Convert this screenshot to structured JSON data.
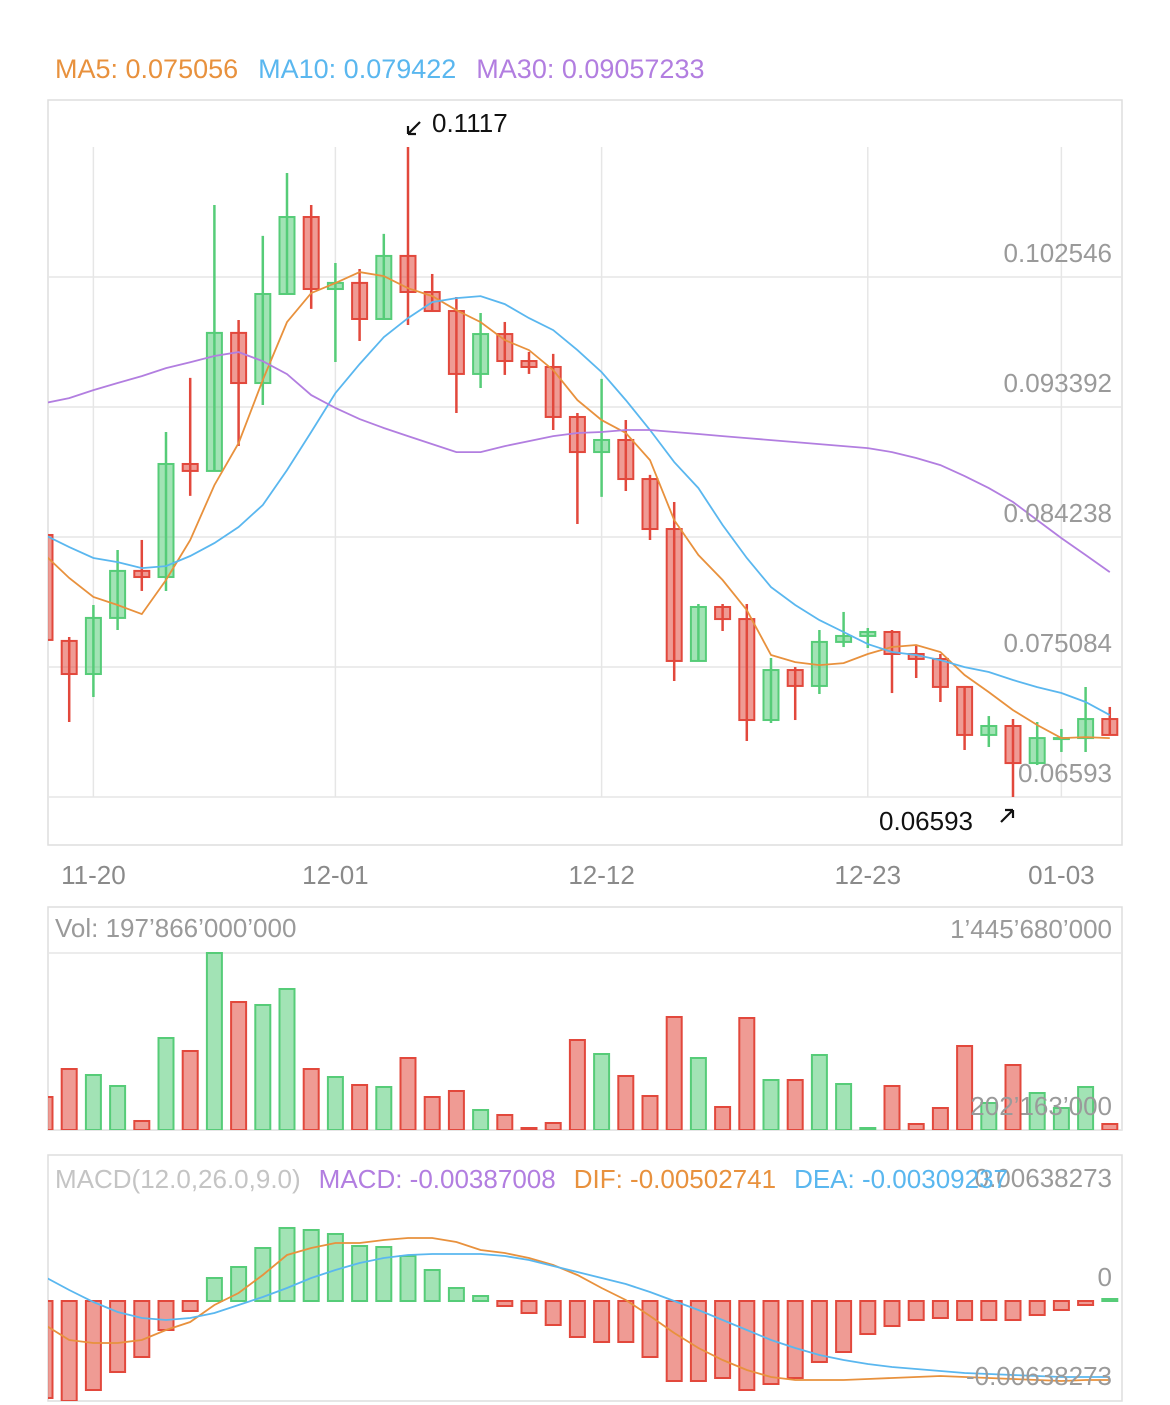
{
  "chart_data": [
    {
      "type": "candlestick",
      "series": [
        {
          "name": "MA5: 0.075056",
          "color": "#e8913d",
          "values": [
            0.08297,
            0.08135,
            0.08001,
            0.07945,
            0.07881,
            0.08121,
            0.08402,
            0.08789,
            0.09085,
            0.09529,
            0.09937,
            0.10141,
            0.10212,
            0.10289,
            0.10261,
            0.10176,
            0.1012,
            0.10021,
            0.09937,
            0.0981,
            0.0974,
            0.09599,
            0.09388,
            0.09247,
            0.09156,
            0.08965,
            0.08543,
            0.08297,
            0.08121,
            0.07909,
            0.07593,
            0.07543,
            0.07522,
            0.07536,
            0.076,
            0.07649,
            0.07663,
            0.07614,
            0.07452,
            0.07332,
            0.07205,
            0.071,
            0.07008,
            0.07015,
            0.07008
          ]
        },
        {
          "name": "MA10: 0.079422",
          "color": "#5ab7ef",
          "values": [
            0.08437,
            0.08353,
            0.08276,
            0.08247,
            0.08205,
            0.08219,
            0.0829,
            0.08381,
            0.08494,
            0.08649,
            0.08895,
            0.09163,
            0.09437,
            0.09641,
            0.09831,
            0.09965,
            0.10078,
            0.10106,
            0.1012,
            0.10064,
            0.09965,
            0.09881,
            0.0974,
            0.09585,
            0.09388,
            0.09177,
            0.08951,
            0.08768,
            0.08508,
            0.08276,
            0.08071,
            0.07945,
            0.07839,
            0.07755,
            0.0767,
            0.07614,
            0.07593,
            0.07557,
            0.07508,
            0.07473,
            0.07417,
            0.07367,
            0.07325,
            0.07262,
            0.0717
          ]
        },
        {
          "name": "MA30: 0.09057233",
          "color": "#b27ee0",
          "values": [
            0.09367,
            0.09402,
            0.09458,
            0.09508,
            0.09557,
            0.09613,
            0.09655,
            0.09698,
            0.09726,
            0.09662,
            0.09571,
            0.09423,
            0.09332,
            0.09254,
            0.09191,
            0.09134,
            0.09078,
            0.09022,
            0.09022,
            0.09064,
            0.09099,
            0.09134,
            0.09156,
            0.09163,
            0.09177,
            0.09177,
            0.09163,
            0.09149,
            0.09134,
            0.0912,
            0.09106,
            0.09092,
            0.09078,
            0.09064,
            0.0905,
            0.09022,
            0.0898,
            0.0893,
            0.08853,
            0.08768,
            0.0867,
            0.08543,
            0.08416,
            0.08297,
            0.08177
          ]
        }
      ],
      "categories": [
        null,
        null,
        "11-20",
        null,
        null,
        null,
        null,
        null,
        null,
        null,
        null,
        null,
        "12-01",
        null,
        null,
        null,
        null,
        null,
        null,
        null,
        null,
        null,
        null,
        "12-12",
        null,
        null,
        null,
        null,
        null,
        null,
        null,
        null,
        null,
        null,
        "12-23",
        null,
        null,
        null,
        null,
        null,
        null,
        null,
        "01-03",
        null,
        null
      ],
      "open": [
        0.08438,
        0.07692,
        0.07459,
        0.07854,
        0.08185,
        0.08142,
        0.08938,
        0.08889,
        0.09861,
        0.09508,
        0.10135,
        0.10677,
        0.1017,
        0.10213,
        0.09959,
        0.10403,
        0.10149,
        0.10015,
        0.09572,
        0.09853,
        0.09663,
        0.09621,
        0.09269,
        0.09022,
        0.09107,
        0.08832,
        0.0848,
        0.07551,
        0.07931,
        0.07846,
        0.07135,
        0.07487,
        0.07375,
        0.07685,
        0.07727,
        0.07755,
        0.076,
        0.07565,
        0.07368,
        0.0703,
        0.07093,
        0.06832,
        0.07001,
        0.07008,
        0.07142
      ],
      "high": [
        0.08438,
        0.0772,
        0.07945,
        0.08332,
        0.08403,
        0.09163,
        0.09544,
        0.10762,
        0.09952,
        0.10544,
        0.10987,
        0.10762,
        0.10353,
        0.10311,
        0.10558,
        0.1117,
        0.10276,
        0.10114,
        0.10001,
        0.09938,
        0.09727,
        0.09713,
        0.09297,
        0.09537,
        0.09248,
        0.08861,
        0.0867,
        0.07952,
        0.07952,
        0.07952,
        0.07572,
        0.07508,
        0.07769,
        0.07896,
        0.07783,
        0.07769,
        0.07663,
        0.076,
        0.07368,
        0.07163,
        0.07142,
        0.07121,
        0.07072,
        0.07368,
        0.07227
      ],
      "low": [
        0.07699,
        0.07121,
        0.07297,
        0.07769,
        0.08044,
        0.08044,
        0.08713,
        0.08889,
        0.09065,
        0.09353,
        0.10135,
        0.1003,
        0.09656,
        0.09804,
        0.09952,
        0.09917,
        0.10015,
        0.09297,
        0.09473,
        0.09565,
        0.09572,
        0.09177,
        0.08515,
        0.08706,
        0.08748,
        0.08403,
        0.0741,
        0.07551,
        0.07762,
        0.06987,
        0.07114,
        0.07135,
        0.07318,
        0.07649,
        0.07642,
        0.07325,
        0.07431,
        0.07262,
        0.06924,
        0.06945,
        0.06593,
        0.06818,
        0.0691,
        0.0691,
        0.0703
      ],
      "close": [
        0.07699,
        0.07459,
        0.07854,
        0.08185,
        0.08142,
        0.08938,
        0.08889,
        0.09861,
        0.09508,
        0.10135,
        0.10677,
        0.1017,
        0.10213,
        0.09959,
        0.10403,
        0.10149,
        0.10015,
        0.09572,
        0.09853,
        0.09663,
        0.09621,
        0.09269,
        0.09022,
        0.09107,
        0.08832,
        0.0848,
        0.07551,
        0.07931,
        0.07846,
        0.07135,
        0.07487,
        0.07375,
        0.07685,
        0.07727,
        0.07755,
        0.076,
        0.07565,
        0.07368,
        0.0703,
        0.07093,
        0.06832,
        0.07008,
        0.07008,
        0.07142,
        0.0703
      ],
      "up_color": "#56cc78",
      "down_color": "#e2483c",
      "ylim": [
        0.06255,
        0.11501
      ],
      "yticks": [
        0.06593,
        0.075084,
        0.084238,
        0.093392,
        0.102546
      ],
      "grid": true,
      "high_marker": 0.1117,
      "low_marker": 0.06593
    },
    {
      "type": "bar",
      "title": "Vol: 197’866’000’000",
      "values": [
        434000000,
        630700000,
        588600000,
        511300000,
        265400000,
        848500000,
        757200000,
        1445680000,
        1101400000,
        1080400000,
        1192800000,
        630700000,
        574500000,
        518300000,
        504300000,
        708000000,
        434000000,
        476200000,
        342700000,
        307600000,
        216200000,
        251300000,
        834500000,
        736100000,
        581600000,
        441000000,
        996100000,
        708000000,
        363800000,
        989000000,
        553400000,
        553400000,
        729100000,
        525300000,
        216200000,
        511300000,
        244300000,
        356700000,
        792300000,
        391800000,
        658800000,
        462100000,
        356700000,
        504300000,
        244300000
      ],
      "ylim": [
        202163000,
        1445680000
      ],
      "yticks": [
        {
          "value": 202163000,
          "label": "202’163’000"
        },
        {
          "value": 1445680000,
          "label": "1’445’680’000"
        }
      ],
      "grid": true
    },
    {
      "type": "macd",
      "title": "MACD(12.0,26.0,9.0)",
      "up_color": "#56cc78",
      "down_color": "#e2483c",
      "series": [
        {
          "name": "MACD: -0.00387008",
          "color": "#b27ee0",
          "values": [
            -0.006254,
            -0.006447,
            -0.005738,
            -0.004578,
            -0.003611,
            -0.00187,
            -0.000645,
            0.001483,
            0.002192,
            0.003417,
            0.004707,
            0.004578,
            0.00432,
            0.003546,
            0.003482,
            0.002901,
            0.001999,
            0.000838,
            0.000322,
            -0.000322,
            -0.000774,
            -0.001547,
            -0.002321,
            -0.002643,
            -0.002643,
            -0.003611,
            -0.005158,
            -0.005158,
            -0.004965,
            -0.005738,
            -0.005351,
            -0.004965,
            -0.003933,
            -0.003288,
            -0.002128,
            -0.001612,
            -0.001225,
            -0.001096,
            -0.001225,
            -0.001225,
            -0.001225,
            -0.000903,
            -0.00058,
            -0.000258,
            0.000129
          ]
        },
        {
          "name": "DIF: -0.00502741",
          "color": "#e8913d",
          "values": [
            -0.001547,
            -0.002514,
            -0.002708,
            -0.002708,
            -0.002514,
            -0.00187,
            -0.001354,
            -0.000258,
            0.000516,
            0.001676,
            0.002966,
            0.003417,
            0.003739,
            0.003739,
            0.003933,
            0.004062,
            0.004062,
            0.003804,
            0.003288,
            0.003095,
            0.002772,
            0.002321,
            0.001676,
            0.000838,
            6.4e-05,
            -0.000967,
            -0.002063,
            -0.00303,
            -0.003804,
            -0.004449,
            -0.0049,
            -0.005093,
            -0.005093,
            -0.005093,
            -0.005029,
            -0.004964,
            -0.0049,
            -0.004835,
            -0.0049,
            -0.004964,
            -0.005029,
            -0.005093,
            -0.005158,
            -0.005093,
            -0.005093
          ]
        },
        {
          "name": "DEA: -0.00309237",
          "color": "#5ab7ef",
          "values": [
            0.001547,
            0.000709,
            -6.4e-05,
            -0.000709,
            -0.001096,
            -0.001225,
            -0.001096,
            -0.000774,
            -0.000258,
            0.000258,
            0.000838,
            0.001483,
            0.001999,
            0.00245,
            0.002772,
            0.002966,
            0.00303,
            0.00303,
            0.00303,
            0.002901,
            0.002643,
            0.002256,
            0.00187,
            0.001483,
            0.001096,
            0.00058,
            0,
            -0.00058,
            -0.001225,
            -0.00187,
            -0.002514,
            -0.00303,
            -0.003481,
            -0.003804,
            -0.004062,
            -0.004255,
            -0.004384,
            -0.004513,
            -0.004642,
            -0.004706,
            -0.004771,
            -0.004835,
            -0.0049,
            -0.0049,
            -0.0049
          ]
        }
      ],
      "ylim": [
        -0.00638273,
        0.00638273
      ],
      "yticks": [
        -0.00638273,
        0,
        0.00638273
      ],
      "grid": false
    }
  ]
}
